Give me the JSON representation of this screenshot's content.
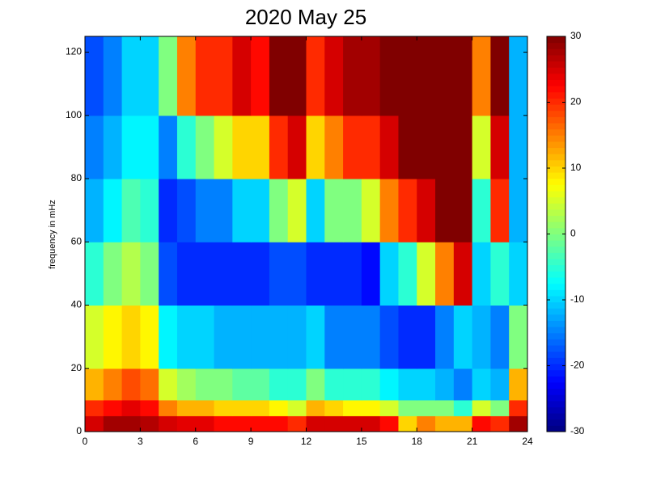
{
  "chart_data": {
    "type": "heatmap",
    "title": "2020 May 25",
    "y_label": "frequency in mHz",
    "colormap": "jet",
    "x_edges": [
      0,
      1,
      2,
      3,
      4,
      5,
      6,
      7,
      8,
      9,
      10,
      11,
      12,
      13,
      14,
      15,
      16,
      17,
      18,
      19,
      20,
      21,
      22,
      23,
      24
    ],
    "y_edges": [
      0,
      5,
      10,
      20,
      40,
      60,
      80,
      100,
      125
    ],
    "values": [
      [
        25,
        28,
        28,
        27,
        25,
        24,
        24,
        22,
        22,
        22,
        22,
        20,
        25,
        25,
        25,
        25,
        22,
        10,
        15,
        12,
        12,
        22,
        20,
        28
      ],
      [
        20,
        22,
        24,
        22,
        15,
        12,
        12,
        10,
        10,
        10,
        8,
        5,
        12,
        10,
        8,
        8,
        5,
        0,
        0,
        0,
        -5,
        5,
        0,
        20
      ],
      [
        12,
        15,
        18,
        16,
        5,
        2,
        0,
        0,
        -2,
        -2,
        -5,
        -5,
        0,
        -5,
        -5,
        -5,
        -8,
        -10,
        -10,
        -12,
        -15,
        -10,
        -12,
        12
      ],
      [
        5,
        8,
        10,
        8,
        -8,
        -10,
        -10,
        -12,
        -12,
        -12,
        -12,
        -12,
        -10,
        -15,
        -15,
        -15,
        -18,
        -20,
        -20,
        -15,
        -10,
        -12,
        -15,
        0
      ],
      [
        -5,
        0,
        3,
        0,
        -18,
        -20,
        -20,
        -20,
        -20,
        -20,
        -18,
        -18,
        -20,
        -20,
        -20,
        -22,
        -10,
        -5,
        5,
        15,
        25,
        -10,
        -5,
        -10
      ],
      [
        -12,
        -8,
        -3,
        -5,
        -20,
        -18,
        -15,
        -15,
        -10,
        -10,
        0,
        5,
        -10,
        0,
        0,
        5,
        15,
        20,
        25,
        30,
        30,
        -5,
        20,
        -12
      ],
      [
        -15,
        -12,
        -8,
        -8,
        -15,
        -5,
        0,
        5,
        10,
        10,
        20,
        25,
        10,
        15,
        20,
        20,
        25,
        30,
        30,
        30,
        30,
        5,
        25,
        -12
      ],
      [
        -18,
        -15,
        -10,
        -10,
        0,
        15,
        20,
        20,
        25,
        22,
        30,
        30,
        20,
        25,
        28,
        28,
        30,
        30,
        30,
        30,
        30,
        15,
        30,
        -12
      ]
    ],
    "xlim": [
      0,
      24
    ],
    "xticks": [
      0,
      3,
      6,
      9,
      12,
      15,
      18,
      21,
      24
    ],
    "ylim": [
      0,
      125
    ],
    "yticks": [
      0,
      20,
      40,
      60,
      80,
      100,
      120
    ],
    "clim": [
      -30,
      30
    ],
    "cticks": [
      -30,
      -20,
      -10,
      0,
      10,
      20,
      30
    ]
  }
}
